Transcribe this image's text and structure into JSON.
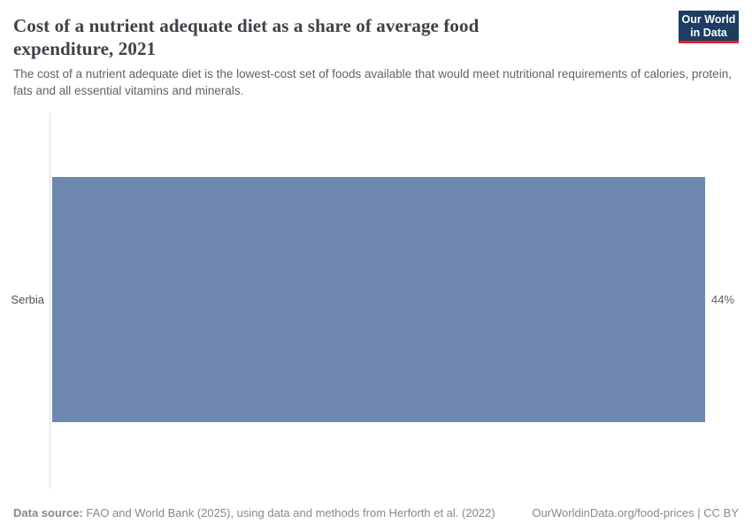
{
  "header": {
    "title": "Cost of a nutrient adequate diet as a share of average food expenditure, 2021",
    "subtitle": "The cost of a nutrient adequate diet is the lowest-cost set of foods available that would meet nutritional requirements of calories, protein, fats and all essential vitamins and minerals.",
    "logo": {
      "line1": "Our World",
      "line2": "in Data",
      "background_color": "#1d3d63",
      "accent_color": "#e0262d"
    }
  },
  "chart_data": {
    "type": "bar",
    "orientation": "horizontal",
    "title": "Cost of a nutrient adequate diet as a share of average food expenditure, 2021",
    "categories": [
      "Serbia"
    ],
    "values": [
      44
    ],
    "value_labels": [
      "44%"
    ],
    "unit": "%",
    "xlim": [
      0,
      44
    ],
    "grid": false,
    "legend": false,
    "bar_color": "#6e87ae"
  },
  "footer": {
    "data_source_label": "Data source:",
    "data_source_text": "FAO and World Bank (2025), using data and methods from Herforth et al. (2022)",
    "url_text": "OurWorldinData.org/food-prices",
    "divider": "|",
    "license": "CC BY"
  }
}
